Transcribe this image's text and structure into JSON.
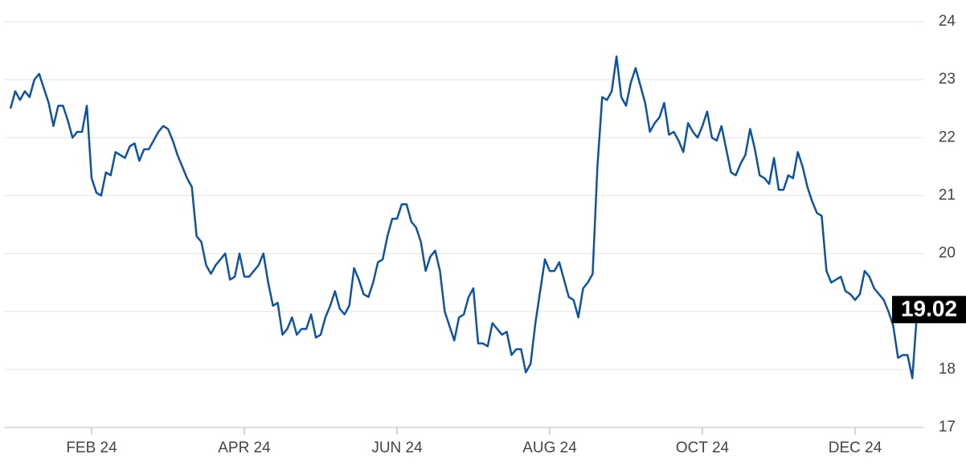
{
  "chart_data": {
    "type": "line",
    "categories": [
      null,
      null,
      null,
      null,
      null,
      null,
      null,
      null,
      null,
      null,
      null,
      null,
      null,
      null,
      null,
      null,
      null,
      "FEB 24",
      null,
      null,
      null,
      null,
      null,
      null,
      null,
      null,
      null,
      null,
      null,
      null,
      null,
      null,
      null,
      null,
      null,
      null,
      null,
      null,
      null,
      null,
      null,
      null,
      null,
      null,
      null,
      null,
      null,
      null,
      null,
      "APR 24",
      null,
      null,
      null,
      null,
      null,
      null,
      null,
      null,
      null,
      null,
      null,
      null,
      null,
      null,
      null,
      null,
      null,
      null,
      null,
      null,
      null,
      null,
      null,
      null,
      null,
      null,
      null,
      null,
      null,
      null,
      null,
      "JUN 24",
      null,
      null,
      null,
      null,
      null,
      null,
      null,
      null,
      null,
      null,
      null,
      null,
      null,
      null,
      null,
      null,
      null,
      null,
      null,
      null,
      null,
      null,
      null,
      null,
      null,
      null,
      null,
      null,
      null,
      null,
      null,
      "AUG 24",
      null,
      null,
      null,
      null,
      null,
      null,
      null,
      null,
      null,
      null,
      null,
      null,
      null,
      null,
      null,
      null,
      null,
      null,
      null,
      null,
      null,
      null,
      null,
      null,
      null,
      null,
      null,
      null,
      null,
      null,
      null,
      "OCT 24",
      null,
      null,
      null,
      null,
      null,
      null,
      null,
      null,
      null,
      null,
      null,
      null,
      null,
      null,
      null,
      null,
      null,
      null,
      null,
      null,
      null,
      null,
      null,
      null,
      null,
      null,
      null,
      null,
      null,
      null,
      null,
      "DEC 24",
      null,
      null,
      null,
      null,
      null,
      null,
      null,
      null,
      null,
      null,
      null,
      null,
      null
    ],
    "series": [
      {
        "color": "#0f529e",
        "values": [
          22.5,
          22.8,
          22.65,
          22.8,
          22.7,
          23.0,
          23.1,
          22.85,
          22.6,
          22.2,
          22.55,
          22.55,
          22.3,
          22.0,
          22.1,
          22.1,
          22.55,
          21.3,
          21.05,
          21.0,
          21.4,
          21.35,
          21.75,
          21.7,
          21.65,
          21.85,
          21.9,
          21.6,
          21.8,
          21.8,
          21.95,
          22.1,
          22.2,
          22.15,
          21.95,
          21.7,
          21.5,
          21.3,
          21.15,
          20.3,
          20.2,
          19.8,
          19.65,
          19.8,
          19.9,
          20.0,
          19.55,
          19.6,
          20.0,
          19.6,
          19.6,
          19.7,
          19.8,
          20.0,
          19.5,
          19.1,
          19.15,
          18.6,
          18.7,
          18.9,
          18.6,
          18.7,
          18.7,
          18.95,
          18.55,
          18.6,
          18.9,
          19.1,
          19.35,
          19.05,
          18.95,
          19.1,
          19.75,
          19.55,
          19.3,
          19.25,
          19.5,
          19.85,
          19.9,
          20.3,
          20.6,
          20.6,
          20.85,
          20.85,
          20.55,
          20.45,
          20.2,
          19.7,
          19.95,
          20.05,
          19.7,
          19.0,
          18.75,
          18.5,
          18.9,
          18.95,
          19.25,
          19.4,
          18.45,
          18.45,
          18.4,
          18.8,
          18.7,
          18.6,
          18.65,
          18.25,
          18.35,
          18.35,
          17.95,
          18.1,
          18.8,
          19.35,
          19.9,
          19.7,
          19.7,
          19.85,
          19.55,
          19.25,
          19.2,
          18.9,
          19.4,
          19.5,
          19.65,
          21.5,
          22.7,
          22.65,
          22.8,
          23.4,
          22.7,
          22.55,
          22.95,
          23.2,
          22.9,
          22.6,
          22.1,
          22.25,
          22.35,
          22.6,
          22.05,
          22.1,
          21.95,
          21.75,
          22.25,
          22.1,
          22.0,
          22.2,
          22.45,
          22.0,
          21.95,
          22.2,
          21.8,
          21.4,
          21.35,
          21.55,
          21.7,
          22.15,
          21.8,
          21.35,
          21.3,
          21.2,
          21.65,
          21.1,
          21.1,
          21.35,
          21.3,
          21.75,
          21.5,
          21.15,
          20.9,
          20.7,
          20.65,
          19.7,
          19.5,
          19.55,
          19.6,
          19.35,
          19.3,
          19.2,
          19.3,
          19.7,
          19.6,
          19.4,
          19.3,
          19.2,
          19.0,
          18.75,
          18.2,
          18.25,
          18.25,
          17.85,
          19.02
        ]
      }
    ],
    "ylim": [
      17,
      24
    ],
    "yticks": [
      17,
      18,
      19,
      20,
      21,
      22,
      23,
      24
    ],
    "grid": true
  }
}
